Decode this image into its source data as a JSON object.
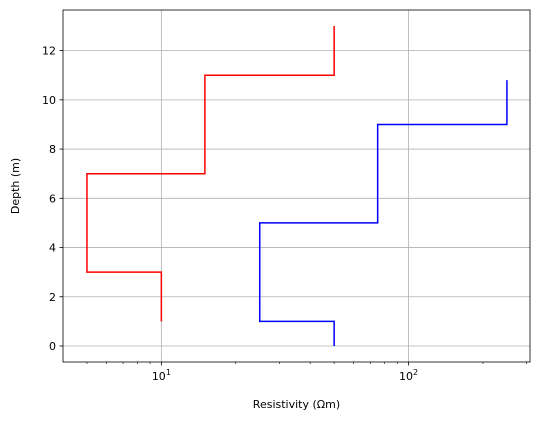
{
  "chart_data": {
    "type": "line",
    "title": "",
    "xlabel": "Resistivity (Ωm)",
    "ylabel": "Depth (m)",
    "xscale": "log",
    "xlim": [
      4.0,
      310
    ],
    "ylim": [
      -0.65,
      13.65
    ],
    "grid": true,
    "legend": "none",
    "x_ticks": [
      {
        "value": 10,
        "base": "10",
        "exp": "1"
      },
      {
        "value": 100,
        "base": "10",
        "exp": "2"
      }
    ],
    "y_ticks": [
      0,
      2,
      4,
      6,
      8,
      10,
      12
    ],
    "series": [
      {
        "color": "#ff0000",
        "points": [
          {
            "x": 10,
            "y": 1
          },
          {
            "x": 10,
            "y": 3
          },
          {
            "x": 5,
            "y": 3
          },
          {
            "x": 5,
            "y": 7
          },
          {
            "x": 15,
            "y": 7
          },
          {
            "x": 15,
            "y": 11
          },
          {
            "x": 50,
            "y": 11
          },
          {
            "x": 50,
            "y": 13
          }
        ]
      },
      {
        "color": "#0000ff",
        "points": [
          {
            "x": 50,
            "y": 0
          },
          {
            "x": 50,
            "y": 1
          },
          {
            "x": 25,
            "y": 1
          },
          {
            "x": 25,
            "y": 5
          },
          {
            "x": 75,
            "y": 5
          },
          {
            "x": 75,
            "y": 9
          },
          {
            "x": 250,
            "y": 9
          },
          {
            "x": 250,
            "y": 10.8
          }
        ]
      }
    ]
  }
}
